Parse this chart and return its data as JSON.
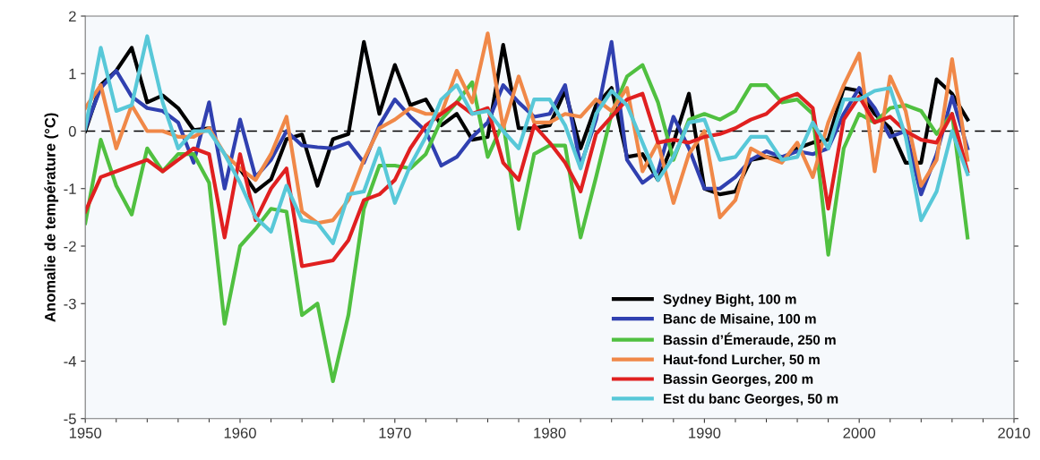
{
  "chart_data": {
    "type": "line",
    "ylabel": "Anomalie de température (°C)",
    "x": [
      1950,
      1951,
      1952,
      1953,
      1954,
      1955,
      1956,
      1957,
      1958,
      1959,
      1960,
      1961,
      1962,
      1963,
      1964,
      1965,
      1966,
      1967,
      1968,
      1969,
      1970,
      1971,
      1972,
      1973,
      1974,
      1975,
      1976,
      1977,
      1978,
      1979,
      1980,
      1981,
      1982,
      1983,
      1984,
      1985,
      1986,
      1987,
      1988,
      1989,
      1990,
      1991,
      1992,
      1993,
      1994,
      1995,
      1996,
      1997,
      1998,
      1999,
      2000,
      2001,
      2002,
      2003,
      2004,
      2005,
      2006,
      2007
    ],
    "series": [
      {
        "name": "Sydney Bight, 100 m",
        "color": "#000000",
        "values": [
          0.0,
          0.8,
          1.05,
          1.45,
          0.5,
          0.62,
          0.4,
          0.02,
          0.05,
          null,
          -0.66,
          -1.05,
          -0.84,
          -0.14,
          -0.06,
          -0.95,
          -0.14,
          -0.05,
          1.55,
          0.3,
          1.15,
          0.45,
          0.55,
          0.1,
          0.3,
          -0.15,
          -0.1,
          1.5,
          0.05,
          0.05,
          0.1,
          0.7,
          -0.3,
          0.45,
          0.75,
          -0.45,
          -0.4,
          -0.85,
          -0.2,
          0.65,
          -1.0,
          -1.1,
          -1.05,
          -0.5,
          -0.45,
          -0.5,
          -0.3,
          -0.2,
          -0.15,
          0.75,
          0.7,
          0.3,
          0.05,
          -0.55,
          -0.55,
          0.9,
          0.65,
          0.2
        ]
      },
      {
        "name": "Banc de Misaine, 100 m",
        "color": "#3040b0",
        "values": [
          0.05,
          0.75,
          1.05,
          0.6,
          0.4,
          0.35,
          0.15,
          -0.55,
          0.5,
          -1.0,
          0.2,
          -0.8,
          -0.5,
          0.0,
          -0.25,
          -0.28,
          -0.3,
          -0.2,
          -0.55,
          0.1,
          0.55,
          0.25,
          0.0,
          -0.6,
          -0.45,
          -0.1,
          0.15,
          0.8,
          0.5,
          0.25,
          0.3,
          0.8,
          -0.6,
          0.2,
          1.55,
          -0.5,
          -0.9,
          -0.7,
          0.25,
          -0.3,
          -1.0,
          -1.0,
          -0.8,
          -0.5,
          -0.35,
          -0.45,
          -0.35,
          -0.4,
          -0.3,
          0.3,
          0.75,
          0.4,
          -0.1,
          0.0,
          -1.1,
          -0.4,
          0.6,
          -0.3
        ]
      },
      {
        "name": "Bassin d’Émeraude, 250 m",
        "color": "#50c040",
        "values": [
          -1.6,
          -0.15,
          -0.95,
          -1.45,
          -0.3,
          -0.7,
          -0.4,
          -0.4,
          -0.9,
          -3.35,
          -2.0,
          -1.7,
          -1.35,
          -1.4,
          -3.2,
          -3.0,
          -4.35,
          -3.2,
          -1.35,
          -0.6,
          -0.6,
          -0.65,
          -0.4,
          0.2,
          0.5,
          0.85,
          -0.45,
          0.15,
          -1.7,
          -0.4,
          -0.25,
          -0.25,
          -1.85,
          -0.8,
          0.3,
          0.95,
          1.15,
          0.5,
          -0.5,
          0.2,
          0.3,
          0.2,
          0.35,
          0.8,
          0.8,
          0.5,
          0.55,
          0.3,
          -2.15,
          -0.3,
          0.3,
          0.15,
          0.4,
          0.45,
          0.35,
          -0.05,
          0.3,
          -1.85
        ]
      },
      {
        "name": "Haut-fond Lurcher, 50 m",
        "color": "#f08848",
        "values": [
          0.4,
          0.8,
          -0.3,
          0.45,
          0.0,
          0.0,
          -0.1,
          -0.1,
          0.05,
          -0.4,
          -0.65,
          -0.85,
          -0.4,
          0.25,
          -1.4,
          -1.6,
          -1.55,
          -1.2,
          -0.5,
          0.05,
          0.2,
          0.4,
          0.3,
          0.3,
          1.05,
          0.5,
          1.7,
          0.05,
          0.95,
          0.15,
          0.15,
          0.3,
          0.25,
          0.55,
          0.35,
          0.75,
          -0.7,
          -0.2,
          -1.25,
          -0.4,
          0.0,
          -1.5,
          -1.2,
          -0.3,
          -0.45,
          -0.55,
          -0.2,
          -0.8,
          0.15,
          0.8,
          1.35,
          -0.7,
          0.95,
          0.35,
          -0.95,
          -0.5,
          1.25,
          -0.5
        ]
      },
      {
        "name": "Bassin Georges, 200 m",
        "color": "#e02020",
        "values": [
          -1.4,
          -0.8,
          -0.7,
          -0.6,
          -0.5,
          -0.7,
          -0.5,
          -0.3,
          -0.4,
          -1.85,
          -0.4,
          -1.55,
          -1.0,
          -0.65,
          -2.35,
          -2.3,
          -2.25,
          -1.9,
          -1.2,
          -1.1,
          -0.85,
          -0.3,
          0.1,
          0.3,
          0.5,
          0.3,
          0.4,
          -0.55,
          -0.85,
          0.1,
          -0.2,
          -0.55,
          -1.05,
          -0.05,
          0.25,
          0.55,
          0.65,
          -0.2,
          -0.15,
          -0.2,
          -0.1,
          -0.05,
          0.05,
          0.2,
          0.3,
          0.55,
          0.65,
          0.4,
          -1.35,
          0.2,
          0.6,
          0.15,
          0.25,
          0.0,
          -0.15,
          -0.2,
          0.3,
          -0.7
        ]
      },
      {
        "name": "Est du banc Georges, 50 m",
        "color": "#58c8d8",
        "values": [
          0.05,
          1.45,
          0.35,
          0.45,
          1.65,
          0.5,
          -0.3,
          0.0,
          0.0,
          -0.4,
          -0.9,
          -1.5,
          -1.75,
          -0.95,
          -1.55,
          -1.6,
          -1.95,
          -1.1,
          -1.05,
          -0.3,
          -1.25,
          -0.6,
          -0.1,
          0.55,
          0.8,
          0.3,
          0.35,
          0.0,
          -0.3,
          0.55,
          0.55,
          0.1,
          -0.65,
          0.3,
          0.7,
          0.45,
          -0.2,
          -0.85,
          -0.45,
          0.15,
          0.2,
          -0.5,
          -0.45,
          -0.1,
          -0.1,
          -0.5,
          -0.45,
          0.15,
          -0.3,
          0.55,
          0.55,
          0.7,
          0.75,
          -0.1,
          -1.55,
          -1.05,
          0.0,
          -0.75
        ]
      }
    ],
    "xlim": [
      1950,
      2010
    ],
    "xticks": [
      1950,
      1960,
      1970,
      1980,
      1990,
      2000,
      2010
    ],
    "ylim": [
      -5,
      2
    ],
    "yticks": [
      -5,
      -4,
      -3,
      -2,
      -1,
      0,
      1,
      2
    ],
    "ref_lines": [
      {
        "axis": "y",
        "value": 0,
        "color": "#000000",
        "line_style": "dashed"
      }
    ],
    "grid": false,
    "legend": "bottom",
    "marker": "none",
    "line_style": "solid"
  }
}
